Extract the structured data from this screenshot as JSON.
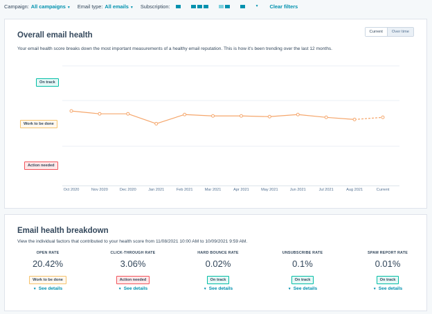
{
  "filters": {
    "campaign_label": "Campaign:",
    "campaign_value": "All campaigns",
    "email_type_label": "Email type:",
    "email_type_value": "All emails",
    "subscription_label": "Subscription:",
    "clear_label": "Clear filters"
  },
  "health": {
    "title": "Overall email health",
    "description": "Your email health score breaks down the most important measurements of a healthy email reputation. This is how it's been trending over the last 12 months.",
    "toggle": {
      "current": "Current",
      "over_time": "Over time"
    },
    "bands": {
      "on_track": "On track",
      "work": "Work to be done",
      "action": "Action needed"
    },
    "colors": {
      "line": "#f5a66b",
      "green": "#00bda5",
      "orange": "#f5c26b",
      "red": "#f2545b"
    }
  },
  "chart_data": {
    "type": "line",
    "categories": [
      "Oct 2020",
      "Nov 2020",
      "Dec 2020",
      "Jan 2021",
      "Feb 2021",
      "Mar 2021",
      "Apr 2021",
      "May 2021",
      "Jun 2021",
      "Jul 2021",
      "Aug 2021",
      "Current"
    ],
    "values": [
      0.56,
      0.52,
      0.52,
      0.38,
      0.51,
      0.49,
      0.49,
      0.48,
      0.51,
      0.47,
      0.44,
      0.47
    ],
    "projected_from_index": 10,
    "ylim": [
      -0.5,
      1.2
    ],
    "grid": true
  },
  "breakdown": {
    "title": "Email health breakdown",
    "description": "View the individual factors that contributed to your health score from 11/08/2021 10:00 AM to 10/09/2021 9:59 AM.",
    "metrics": [
      {
        "name": "OPEN RATE",
        "value": "20.42%",
        "status": "Work to be done",
        "kind": "orange",
        "details": "See details"
      },
      {
        "name": "CLICK-THROUGH RATE",
        "value": "3.06%",
        "status": "Action needed",
        "kind": "red",
        "details": "See details"
      },
      {
        "name": "HARD BOUNCE RATE",
        "value": "0.02%",
        "status": "On track",
        "kind": "green",
        "details": "See details"
      },
      {
        "name": "UNSUBSCRIBE RATE",
        "value": "0.1%",
        "status": "On track",
        "kind": "green",
        "details": "See details"
      },
      {
        "name": "SPAM REPORT RATE",
        "value": "0.01%",
        "status": "On track",
        "kind": "green",
        "details": "See details"
      }
    ]
  }
}
